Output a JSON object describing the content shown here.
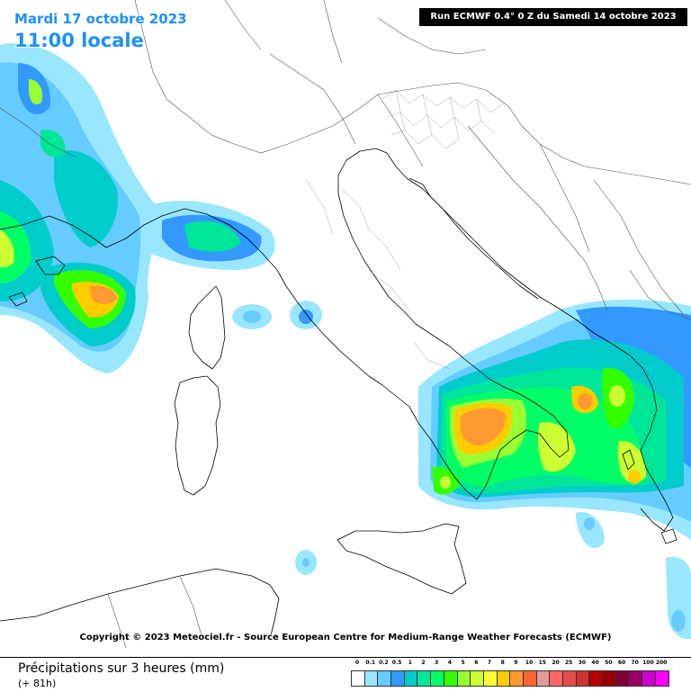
{
  "header": {
    "date": "Mardi 17 octobre 2023",
    "time": "11:00 locale",
    "run": "Run ECMWF 0.4° 0 Z du Samedi 14 octobre 2023"
  },
  "copyright": "Copyright © 2023 Meteociel.fr - Source European Centre for Medium-Range Weather Forecasts (ECMWF)",
  "legend": {
    "title": "Précipitations sur 3 heures (mm)",
    "subtitle": "(+ 81h)",
    "scale_labels": [
      "0",
      "0.1",
      "0.2",
      "0.5",
      "1",
      "2",
      "3",
      "4",
      "5",
      "6",
      "7",
      "8",
      "9",
      "10",
      "15",
      "20",
      "25",
      "30",
      "40",
      "50",
      "60",
      "70",
      "100",
      "200"
    ],
    "scale_colors": [
      "#ffffff",
      "#99e6ff",
      "#66ccff",
      "#3399ff",
      "#00cccc",
      "#00e699",
      "#00ff66",
      "#33ff00",
      "#99ff33",
      "#ccff33",
      "#ffff33",
      "#ffcc00",
      "#ff9933",
      "#ff6633",
      "#e69999",
      "#ff6666",
      "#e64d4d",
      "#cc3333",
      "#b30000",
      "#990000",
      "#800033",
      "#990066",
      "#cc00cc",
      "#ff00ff"
    ]
  }
}
